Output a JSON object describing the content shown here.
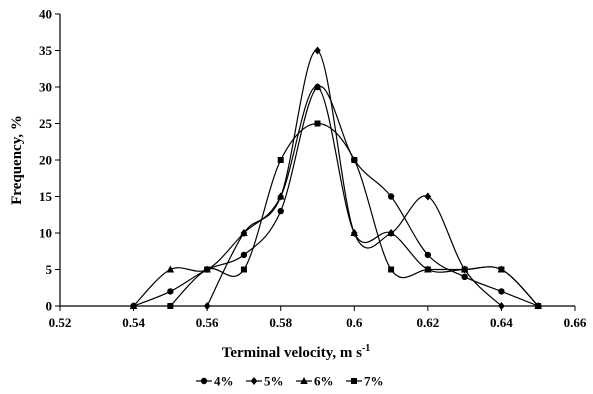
{
  "chart_data": {
    "type": "line",
    "xlabel": "Terminal velocity, m s",
    "xlabel_sup": "-1",
    "ylabel": "Frequency, %",
    "xlim": [
      0.52,
      0.66
    ],
    "ylim": [
      0,
      40
    ],
    "x_ticks": [
      "0.52",
      "0.54",
      "0.56",
      "0.58",
      "0.6",
      "0.62",
      "0.64",
      "0.66"
    ],
    "y_ticks": [
      "0",
      "5",
      "10",
      "15",
      "20",
      "25",
      "30",
      "35",
      "40"
    ],
    "grid": false,
    "legend_position": "bottom",
    "series": [
      {
        "name": "4%",
        "marker": "circle",
        "x": [
          0.54,
          0.55,
          0.56,
          0.57,
          0.58,
          0.59,
          0.6,
          0.61,
          0.62,
          0.63,
          0.64,
          0.65
        ],
        "y": [
          0,
          2,
          5,
          7,
          13,
          30,
          20,
          15,
          7,
          4,
          2,
          0
        ]
      },
      {
        "name": "5%",
        "marker": "diamond",
        "x": [
          0.56,
          0.57,
          0.58,
          0.59,
          0.6,
          0.61,
          0.62,
          0.63,
          0.64
        ],
        "y": [
          0,
          10,
          15,
          35,
          10,
          10,
          15,
          5,
          0
        ]
      },
      {
        "name": "6%",
        "marker": "triangle",
        "x": [
          0.54,
          0.55,
          0.56,
          0.57,
          0.58,
          0.59,
          0.6,
          0.61,
          0.62,
          0.63,
          0.64,
          0.65
        ],
        "y": [
          0,
          5,
          5,
          10,
          15,
          30,
          10,
          10,
          5,
          5,
          5,
          0
        ]
      },
      {
        "name": "7%",
        "marker": "square",
        "x": [
          0.55,
          0.56,
          0.57,
          0.58,
          0.59,
          0.6,
          0.61,
          0.62,
          0.63,
          0.64,
          0.65
        ],
        "y": [
          0,
          5,
          5,
          20,
          25,
          20,
          5,
          5,
          5,
          5,
          0
        ]
      }
    ]
  }
}
